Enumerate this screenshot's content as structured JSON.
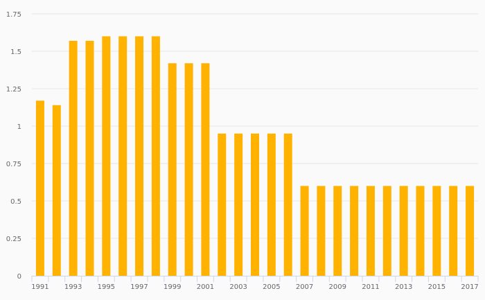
{
  "chart_data": {
    "type": "bar",
    "title": "",
    "xlabel": "",
    "ylabel": "",
    "ylim": [
      0,
      1.75
    ],
    "yticks": [
      "0",
      "0.25",
      "0.5",
      "0.75",
      "1",
      "1.25",
      "1.5",
      "1.75"
    ],
    "ytick_values": [
      0,
      0.25,
      0.5,
      0.75,
      1,
      1.25,
      1.5,
      1.75
    ],
    "grid": true,
    "bar_color": "#ffb300",
    "categories": [
      "1991",
      "1992",
      "1993",
      "1994",
      "1995",
      "1996",
      "1997",
      "1998",
      "1999",
      "2000",
      "2001",
      "2002",
      "2003",
      "2004",
      "2005",
      "2006",
      "2007",
      "2008",
      "2009",
      "2010",
      "2011",
      "2012",
      "2013",
      "2014",
      "2015",
      "2016",
      "2017"
    ],
    "values": [
      1.17,
      1.14,
      1.57,
      1.57,
      1.6,
      1.6,
      1.6,
      1.6,
      1.42,
      1.42,
      1.42,
      0.95,
      0.95,
      0.95,
      0.95,
      0.95,
      0.6,
      0.6,
      0.6,
      0.6,
      0.6,
      0.6,
      0.6,
      0.6,
      0.6,
      0.6,
      0.6
    ]
  }
}
